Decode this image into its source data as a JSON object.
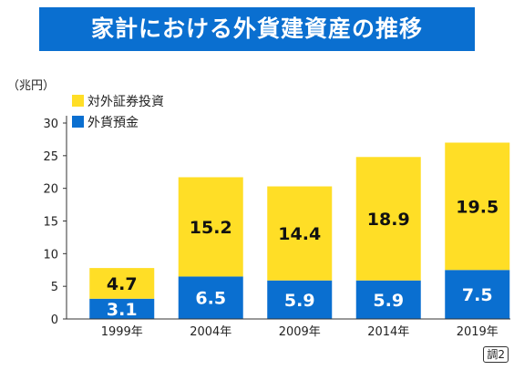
{
  "title": "家計における外貨建資産の推移",
  "footnote": "調2",
  "colors": {
    "title_bg": "#0a6fd0",
    "foreign_securities": "#ffde26",
    "foreign_deposits": "#0a6fd0"
  },
  "chart_data": {
    "type": "bar",
    "stacked": true,
    "unit_label": "（兆円）",
    "categories": [
      "1999年",
      "2004年",
      "2009年",
      "2014年",
      "2019年"
    ],
    "series": [
      {
        "name": "外貨預金",
        "color": "#0a6fd0",
        "values": [
          3.1,
          6.5,
          5.9,
          5.9,
          7.5
        ]
      },
      {
        "name": "対外証券投資",
        "color": "#ffde26",
        "values": [
          4.7,
          15.2,
          14.4,
          18.9,
          19.5
        ]
      }
    ],
    "legend_order": [
      "対外証券投資",
      "外貨預金"
    ],
    "legend_position": "top-left",
    "ylim": [
      0,
      30
    ],
    "yticks": [
      0,
      5,
      10,
      15,
      20,
      25,
      30
    ],
    "grid": false
  }
}
